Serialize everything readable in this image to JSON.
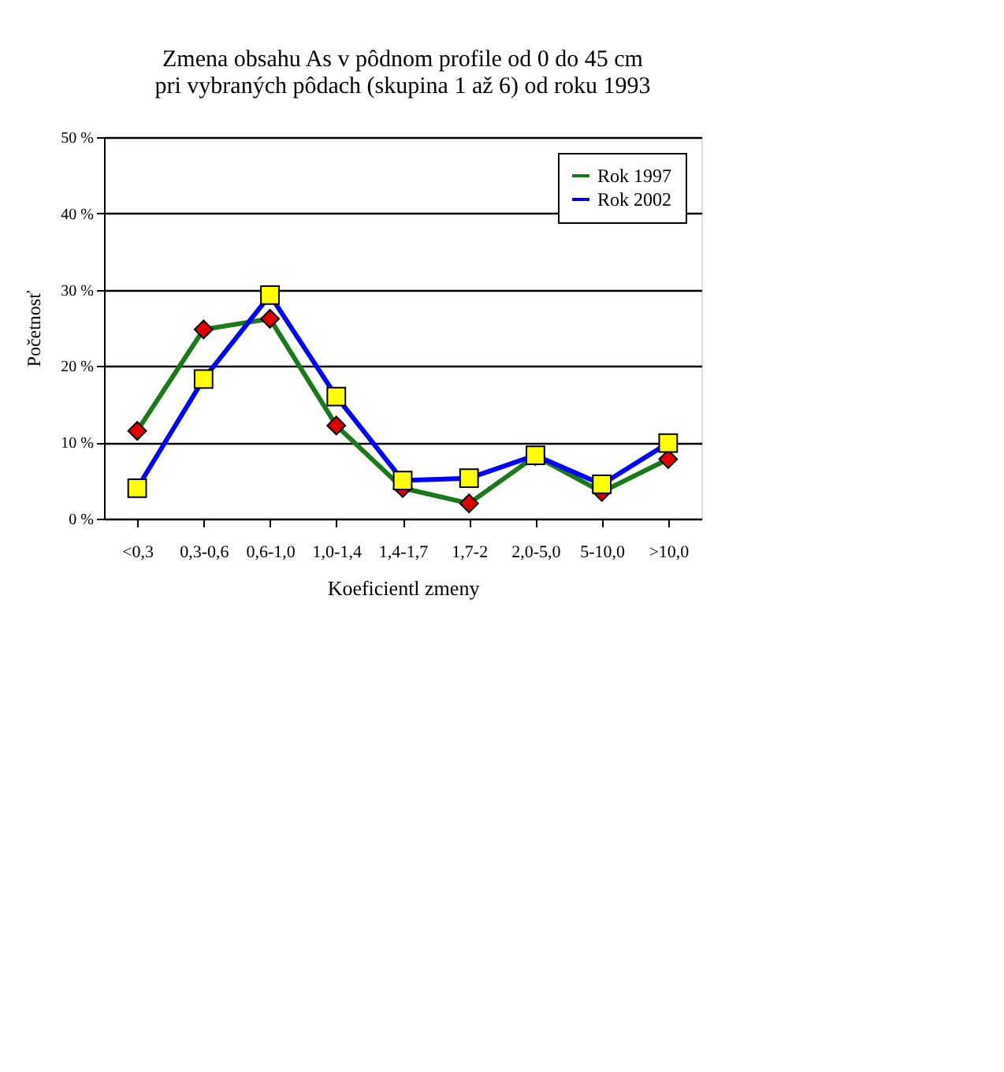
{
  "chart_data": {
    "type": "line",
    "title": [
      "Zmena obsahu As v pôdnom profile od 0 do 45 cm",
      "pri vybraných pôdach (skupina 1 až 6) od roku 1993"
    ],
    "xlabel": "Koeficientl zmeny",
    "ylabel": "Početnosť",
    "categories": [
      "<0,3",
      "0,3-0,6",
      "0,6-1,0",
      "1,0-1,4",
      "1,4-1,7",
      "1,7-2",
      "2,0-5,0",
      "5-10,0",
      ">10,0"
    ],
    "series": [
      {
        "name": "Rok 1997",
        "color": "#1a7a1a",
        "marker": "diamond",
        "colors": [
          "#e00000",
          "#e00000",
          "#e00000",
          "#e00000",
          "#e00000",
          "#e00000",
          "#e00000",
          "#e00000",
          "#e00000"
        ],
        "values": [
          11.5,
          24.8,
          26.2,
          12.2,
          4,
          2,
          8.2,
          3.5,
          7.8
        ]
      },
      {
        "name": "Rok 2002",
        "color": "#0000ff",
        "marker": "square",
        "colors": [
          "#ffff00",
          "#ffff00",
          "#ffff00",
          "#ffff00",
          "#ffff00",
          "#ffff00",
          "#ffff00",
          "#ffff00",
          "#ffff00"
        ],
        "values": [
          4,
          18.3,
          29.3,
          16,
          5,
          5.3,
          8.3,
          4.5,
          9.9
        ]
      }
    ],
    "ylim": [
      0,
      50
    ],
    "yticks": [
      {
        "value": 0,
        "label": "0 %"
      },
      {
        "value": 10,
        "label": "10 %"
      },
      {
        "value": 20,
        "label": "20 %"
      },
      {
        "value": 30,
        "label": "30 %"
      },
      {
        "value": 40,
        "label": "40 %"
      },
      {
        "value": 50,
        "label": "50 %"
      }
    ],
    "grid": "y",
    "legend": "top right",
    "line_style": "solid"
  }
}
